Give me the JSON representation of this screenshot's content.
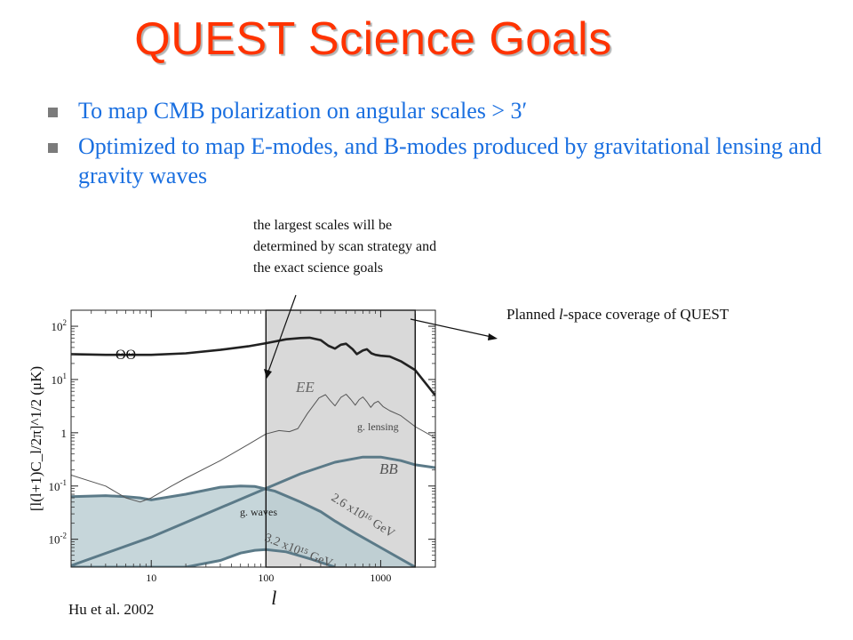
{
  "slide": {
    "title": "QUEST Science Goals",
    "bullets": [
      "To map CMB polarization on  angular scales > 3′",
      "Optimized to map E-modes, and B-modes produced by gravitational lensing and gravity waves"
    ],
    "note": "the largest scales will be determined by scan strategy and the exact science goals",
    "coverage_prefix": "Planned ",
    "coverage_italic": "l",
    "coverage_suffix": "-space coverage of QUEST",
    "citation": "Hu et al. 2002"
  },
  "colors": {
    "title": "#ff3300",
    "bullet_text": "#1a6fe0",
    "band_fill": "#b9cdd2",
    "band_edge": "#5b7a88",
    "coverage_box": "#d9d9d9"
  },
  "chart_data": {
    "type": "line",
    "xscale": "log",
    "yscale": "log",
    "xlim": [
      2,
      3000
    ],
    "ylim": [
      0.003,
      200
    ],
    "xlabel": "l",
    "ylabel": "[l(l+1)C_l/2π]^1/2 (μK)",
    "xticks": [
      {
        "value": 10,
        "label": "10"
      },
      {
        "value": 100,
        "label": "100"
      },
      {
        "value": 1000,
        "label": "1000"
      }
    ],
    "yticks": [
      {
        "value": 0.01,
        "label": "10-2",
        "base": "10",
        "exp": "-2"
      },
      {
        "value": 0.1,
        "label": "10-1",
        "base": "10",
        "exp": "-1"
      },
      {
        "value": 1,
        "label": "1",
        "base": "1",
        "exp": ""
      },
      {
        "value": 10,
        "label": "101",
        "base": "10",
        "exp": "1"
      },
      {
        "value": 100,
        "label": "102",
        "base": "10",
        "exp": "2"
      }
    ],
    "shaded_region": {
      "l_min": 100,
      "l_max": 2000
    },
    "bands": [
      {
        "name": "g. waves",
        "upper": [
          [
            2,
            0.063
          ],
          [
            4,
            0.066
          ],
          [
            6,
            0.063
          ],
          [
            8,
            0.06
          ],
          [
            10,
            0.055
          ],
          [
            20,
            0.07
          ],
          [
            40,
            0.095
          ],
          [
            60,
            0.1
          ],
          [
            80,
            0.098
          ],
          [
            120,
            0.08
          ],
          [
            200,
            0.05
          ],
          [
            300,
            0.033
          ],
          [
            400,
            0.022
          ],
          [
            600,
            0.013
          ],
          [
            1000,
            0.007
          ],
          [
            2000,
            0.003
          ]
        ],
        "lower": [
          [
            2,
            0.003
          ],
          [
            20,
            0.003
          ],
          [
            40,
            0.004
          ],
          [
            60,
            0.0055
          ],
          [
            80,
            0.0062
          ],
          [
            100,
            0.0064
          ],
          [
            150,
            0.0058
          ],
          [
            250,
            0.0042
          ],
          [
            400,
            0.003
          ]
        ]
      }
    ],
    "series": [
      {
        "name": "ΘΘ",
        "points": [
          [
            2,
            30
          ],
          [
            4,
            29
          ],
          [
            10,
            29
          ],
          [
            20,
            31
          ],
          [
            40,
            36
          ],
          [
            70,
            42
          ],
          [
            100,
            48
          ],
          [
            150,
            57
          ],
          [
            200,
            60
          ],
          [
            240,
            61
          ],
          [
            300,
            55
          ],
          [
            350,
            43
          ],
          [
            400,
            38
          ],
          [
            450,
            45
          ],
          [
            500,
            47
          ],
          [
            570,
            37
          ],
          [
            620,
            30
          ],
          [
            700,
            35
          ],
          [
            760,
            37
          ],
          [
            830,
            31
          ],
          [
            900,
            29
          ],
          [
            1000,
            28
          ],
          [
            1200,
            27
          ],
          [
            1500,
            22
          ],
          [
            2000,
            15
          ],
          [
            3000,
            5
          ]
        ]
      },
      {
        "name": "EE",
        "points": [
          [
            2,
            0.16
          ],
          [
            4,
            0.1
          ],
          [
            6,
            0.06
          ],
          [
            8,
            0.05
          ],
          [
            10,
            0.06
          ],
          [
            15,
            0.1
          ],
          [
            20,
            0.14
          ],
          [
            40,
            0.3
          ],
          [
            70,
            0.6
          ],
          [
            100,
            0.95
          ],
          [
            130,
            1.1
          ],
          [
            160,
            1.05
          ],
          [
            190,
            1.2
          ],
          [
            230,
            2.3
          ],
          [
            290,
            4.5
          ],
          [
            330,
            5.2
          ],
          [
            360,
            4.1
          ],
          [
            400,
            3.2
          ],
          [
            450,
            4.6
          ],
          [
            500,
            5.3
          ],
          [
            550,
            4.2
          ],
          [
            600,
            3.3
          ],
          [
            650,
            4.2
          ],
          [
            700,
            4.7
          ],
          [
            760,
            3.8
          ],
          [
            820,
            3
          ],
          [
            880,
            3.6
          ],
          [
            950,
            3.9
          ],
          [
            1050,
            3.1
          ],
          [
            1200,
            2.6
          ],
          [
            1500,
            2.1
          ],
          [
            2000,
            1.3
          ],
          [
            3000,
            0.8
          ]
        ]
      },
      {
        "name": "g. lensing",
        "points": [
          [
            2,
            0.0032
          ],
          [
            10,
            0.011
          ],
          [
            30,
            0.03
          ],
          [
            100,
            0.09
          ],
          [
            200,
            0.17
          ],
          [
            400,
            0.28
          ],
          [
            700,
            0.35
          ],
          [
            1000,
            0.35
          ],
          [
            1500,
            0.3
          ],
          [
            2000,
            0.25
          ],
          [
            3000,
            0.22
          ]
        ]
      }
    ],
    "annotations": [
      "ΘΘ",
      "EE",
      "g. lensing",
      "BB",
      "g. waves",
      "2.6 x10¹⁶ GeV",
      "3.2 x10¹⁵ GeV"
    ]
  }
}
